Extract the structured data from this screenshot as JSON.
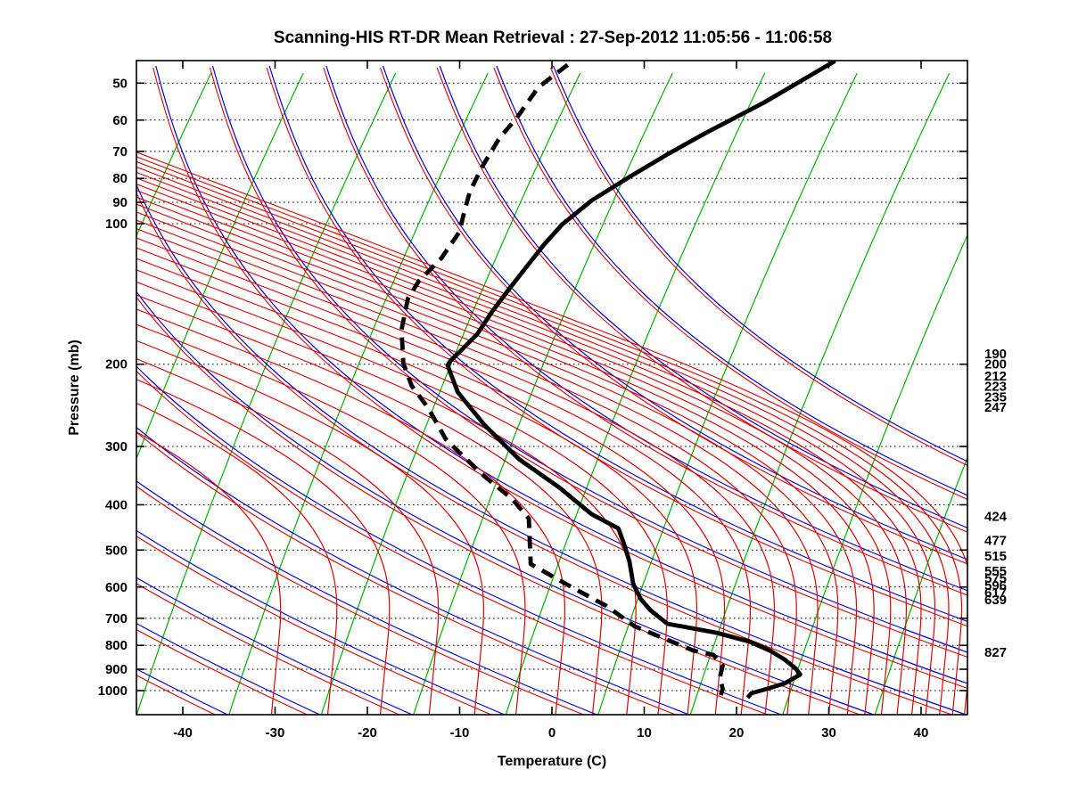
{
  "chart_data": {
    "type": "line",
    "subtype": "skew-t-log-p-atmospheric-sounding",
    "title": "Scanning-HIS RT-DR Mean Retrieval : 27-Sep-2012 11:05:56 - 11:06:58",
    "xlabel": "Temperature (C)",
    "ylabel": "Pressure (mb)",
    "xlim": [
      -45,
      45
    ],
    "x_ticks": [
      -40,
      -30,
      -20,
      -10,
      0,
      10,
      20,
      30,
      40
    ],
    "y_ticks_mb": [
      50,
      60,
      70,
      80,
      90,
      100,
      200,
      300,
      400,
      500,
      600,
      700,
      800,
      900,
      1000
    ],
    "pressure_top_mb": 45,
    "pressure_bottom_mb": 1127,
    "grid": "dotted-horizontal",
    "legend_position": "none",
    "series": [
      {
        "name": "temperature",
        "style": "solid",
        "color": "#000000",
        "points_t_p": [
          [
            30.7,
            44.8
          ],
          [
            23.0,
            55.0
          ],
          [
            16.5,
            64.2
          ],
          [
            12.7,
            70.7
          ],
          [
            8.5,
            79.2
          ],
          [
            4.3,
            89.2
          ],
          [
            2.3,
            96.1
          ],
          [
            1.1,
            100.4
          ],
          [
            -0.9,
            111.1
          ],
          [
            -2.8,
            124.0
          ],
          [
            -4.7,
            138.5
          ],
          [
            -6.5,
            154.5
          ],
          [
            -8.1,
            172.4
          ],
          [
            -10.0,
            188.2
          ],
          [
            -11.0,
            196.7
          ],
          [
            -11.3,
            201.1
          ],
          [
            -10.2,
            229.5
          ],
          [
            -7.3,
            269.9
          ],
          [
            -3.6,
            319.0
          ],
          [
            0.8,
            367.3
          ],
          [
            4.3,
            418.9
          ],
          [
            7.2,
            449.5
          ],
          [
            7.8,
            484.5
          ],
          [
            8.4,
            528.8
          ],
          [
            8.8,
            590.3
          ],
          [
            9.6,
            636.2
          ],
          [
            10.7,
            673.3
          ],
          [
            12.5,
            719.2
          ],
          [
            17.8,
            751.5
          ],
          [
            21.4,
            785.3
          ],
          [
            23.6,
            820.7
          ],
          [
            25.2,
            857.6
          ],
          [
            26.4,
            896.2
          ],
          [
            26.9,
            924.0
          ],
          [
            25.2,
            965.4
          ],
          [
            23.3,
            991.3
          ],
          [
            21.6,
            1013.3
          ],
          [
            21.2,
            1035.8
          ]
        ]
      },
      {
        "name": "dewpoint",
        "style": "dashed",
        "color": "#000000",
        "points_t_p": [
          [
            1.7,
            45.7
          ],
          [
            -1.5,
            51.1
          ],
          [
            -3.8,
            59.3
          ],
          [
            -5.7,
            65.6
          ],
          [
            -7.6,
            75.8
          ],
          [
            -8.9,
            85.4
          ],
          [
            -9.6,
            96.1
          ],
          [
            -10.0,
            104.0
          ],
          [
            -12.0,
            118.7
          ],
          [
            -14.4,
            132.5
          ],
          [
            -15.6,
            144.6
          ],
          [
            -16.3,
            168.7
          ],
          [
            -16.1,
            199.3
          ],
          [
            -15.2,
            222.4
          ],
          [
            -13.4,
            248.3
          ],
          [
            -11.5,
            289.6
          ],
          [
            -7.6,
            343.8
          ],
          [
            -4.3,
            388.8
          ],
          [
            -2.5,
            428.2
          ],
          [
            -2.3,
            535.8
          ],
          [
            2.5,
            605.9
          ],
          [
            5.9,
            658.6
          ],
          [
            9.0,
            728.7
          ],
          [
            12.5,
            778.4
          ],
          [
            15.3,
            820.7
          ],
          [
            17.5,
            838.8
          ],
          [
            18.5,
            884.3
          ],
          [
            18.2,
            936.3
          ],
          [
            18.5,
            991.3
          ],
          [
            18.3,
            1022.1
          ]
        ]
      }
    ],
    "right_pressure_labels_mb": [
      190,
      200,
      212,
      223,
      235,
      247,
      424,
      477,
      515,
      555,
      575,
      596,
      617,
      639,
      827
    ],
    "background_lines": {
      "isotherms": {
        "color": "#00b400",
        "temps_c": [
          -85,
          -75,
          -65,
          -55,
          -45,
          -35,
          -25,
          -15,
          -5,
          5,
          15,
          25,
          35,
          45
        ]
      },
      "dry_adiabats": {
        "color": "#0000dd",
        "surface_temps_k": [
          178,
          188,
          198,
          208,
          218,
          228,
          238,
          248,
          258,
          268,
          278,
          288,
          298,
          308,
          318,
          328,
          338,
          348,
          358,
          368,
          378,
          388,
          398
        ]
      },
      "moist_companions": {
        "color": "#dd0000"
      },
      "moist_adiabat_fan": {
        "color": "#dd0000",
        "surface_temps_c": [
          -30.4,
          -24.3,
          -18.6,
          -13.3,
          -8.4,
          -3.9,
          0.4,
          4.4,
          8.1,
          11.5,
          14.7,
          17.7,
          20.5,
          23.1,
          25.5,
          27.8,
          30.0,
          32.0,
          33.9,
          35.7,
          37.4,
          39.0,
          40.5,
          42.0,
          43.4,
          44.7
        ]
      }
    },
    "colors": {
      "axis": "#000000",
      "gridline": "#000000",
      "sounding": "#000000"
    }
  }
}
